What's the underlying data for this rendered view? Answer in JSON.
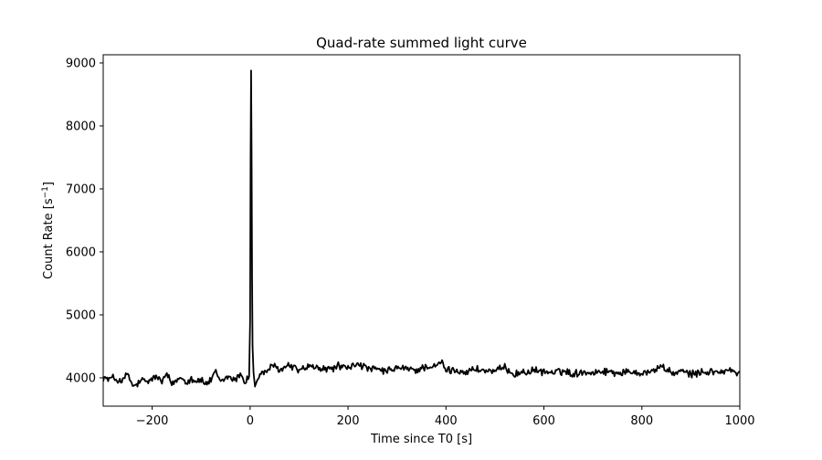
{
  "chart_data": {
    "type": "line",
    "title": "Quad-rate summed light curve",
    "xlabel": "Time since T0 [s]",
    "ylabel_main": "Count Rate [s",
    "ylabel_sup": "−1",
    "ylabel_close": "]",
    "xlim": [
      -300,
      1000
    ],
    "ylim": [
      3550,
      9130
    ],
    "grid": false,
    "legend": "none",
    "line_color": "#000000",
    "x_ticks": [
      -200,
      0,
      200,
      400,
      600,
      800,
      1000
    ],
    "x_tick_labels": [
      "−200",
      "0",
      "200",
      "400",
      "600",
      "800",
      "1000"
    ],
    "y_ticks": [
      4000,
      5000,
      6000,
      7000,
      8000,
      9000
    ],
    "y_tick_labels": [
      "4000",
      "5000",
      "6000",
      "7000",
      "8000",
      "9000"
    ],
    "series": [
      {
        "bin_s": 2,
        "x_start": -300,
        "x_end": 1000,
        "points": [
          [
            -300,
            4010
          ],
          [
            -290,
            3975
          ],
          [
            -280,
            4000
          ],
          [
            -270,
            3960
          ],
          [
            -260,
            3950
          ],
          [
            -250,
            4070
          ],
          [
            -240,
            3860
          ],
          [
            -230,
            3900
          ],
          [
            -220,
            3960
          ],
          [
            -210,
            3930
          ],
          [
            -200,
            3990
          ],
          [
            -190,
            4010
          ],
          [
            -180,
            3940
          ],
          [
            -170,
            4050
          ],
          [
            -160,
            3900
          ],
          [
            -150,
            3960
          ],
          [
            -140,
            4020
          ],
          [
            -130,
            3930
          ],
          [
            -120,
            3990
          ],
          [
            -110,
            3950
          ],
          [
            -100,
            3960
          ],
          [
            -90,
            3900
          ],
          [
            -80,
            3960
          ],
          [
            -70,
            4090
          ],
          [
            -60,
            3930
          ],
          [
            -50,
            4000
          ],
          [
            -40,
            4020
          ],
          [
            -30,
            3950
          ],
          [
            -20,
            4080
          ],
          [
            -10,
            3920
          ],
          [
            -5,
            4000
          ],
          [
            -2,
            4020
          ],
          [
            0,
            4900
          ],
          [
            1,
            7500
          ],
          [
            2,
            8880
          ],
          [
            3,
            7600
          ],
          [
            4,
            5600
          ],
          [
            5,
            4500
          ],
          [
            7,
            4080
          ],
          [
            10,
            3870
          ],
          [
            20,
            4050
          ],
          [
            30,
            4090
          ],
          [
            40,
            4150
          ],
          [
            50,
            4180
          ],
          [
            60,
            4120
          ],
          [
            80,
            4200
          ],
          [
            100,
            4120
          ],
          [
            120,
            4180
          ],
          [
            140,
            4150
          ],
          [
            160,
            4130
          ],
          [
            180,
            4190
          ],
          [
            200,
            4150
          ],
          [
            220,
            4230
          ],
          [
            240,
            4140
          ],
          [
            260,
            4130
          ],
          [
            280,
            4100
          ],
          [
            300,
            4160
          ],
          [
            320,
            4140
          ],
          [
            340,
            4120
          ],
          [
            360,
            4180
          ],
          [
            380,
            4170
          ],
          [
            390,
            4260
          ],
          [
            400,
            4120
          ],
          [
            420,
            4120
          ],
          [
            440,
            4090
          ],
          [
            460,
            4140
          ],
          [
            480,
            4110
          ],
          [
            500,
            4100
          ],
          [
            520,
            4160
          ],
          [
            540,
            4060
          ],
          [
            560,
            4090
          ],
          [
            580,
            4110
          ],
          [
            600,
            4100
          ],
          [
            620,
            4080
          ],
          [
            640,
            4110
          ],
          [
            660,
            4060
          ],
          [
            680,
            4100
          ],
          [
            700,
            4080
          ],
          [
            720,
            4110
          ],
          [
            740,
            4090
          ],
          [
            760,
            4080
          ],
          [
            780,
            4100
          ],
          [
            800,
            4080
          ],
          [
            820,
            4100
          ],
          [
            840,
            4190
          ],
          [
            860,
            4070
          ],
          [
            880,
            4100
          ],
          [
            900,
            4060
          ],
          [
            920,
            4080
          ],
          [
            940,
            4100
          ],
          [
            960,
            4090
          ],
          [
            980,
            4120
          ],
          [
            1000,
            4050
          ]
        ]
      }
    ]
  }
}
